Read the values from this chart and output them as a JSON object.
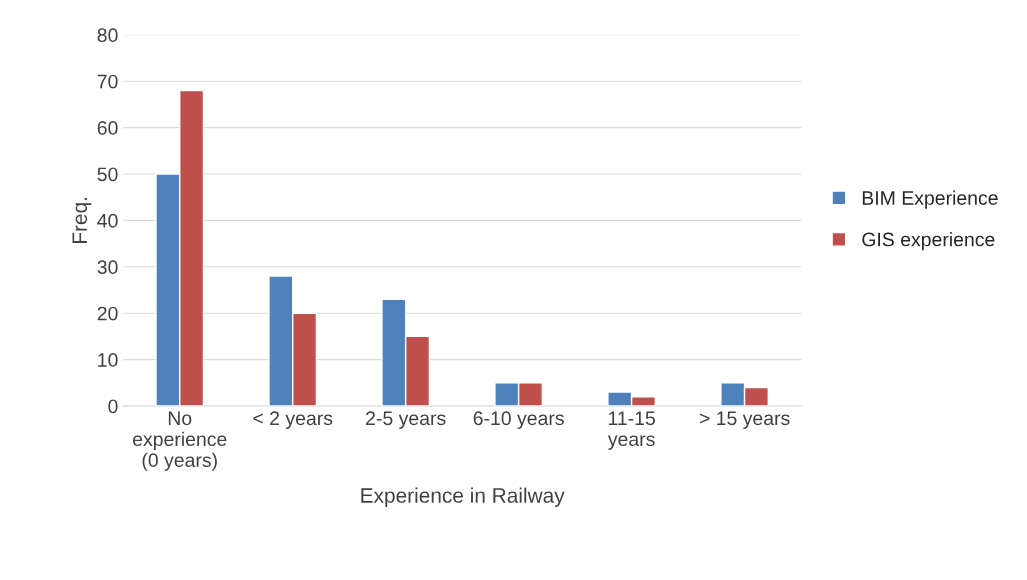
{
  "chart_data": {
    "type": "bar",
    "categories": [
      "No\nexperience\n(0 years)",
      "< 2 years",
      "2-5 years",
      "6-10 years",
      "11-15\nyears",
      "> 15 years"
    ],
    "series": [
      {
        "name": "BIM Experience",
        "color": "#4f81bd",
        "values": [
          50,
          28,
          23,
          5,
          3,
          5
        ]
      },
      {
        "name": "GIS experience",
        "color": "#c0504d",
        "values": [
          68,
          20,
          15,
          5,
          2,
          4
        ]
      }
    ],
    "xlabel": "Experience in Railway",
    "ylabel": "Freq.",
    "ylim": [
      0,
      80
    ],
    "yticks": [
      0,
      10,
      20,
      30,
      40,
      50,
      60,
      70,
      80
    ],
    "grid": "y",
    "legend": "right"
  }
}
